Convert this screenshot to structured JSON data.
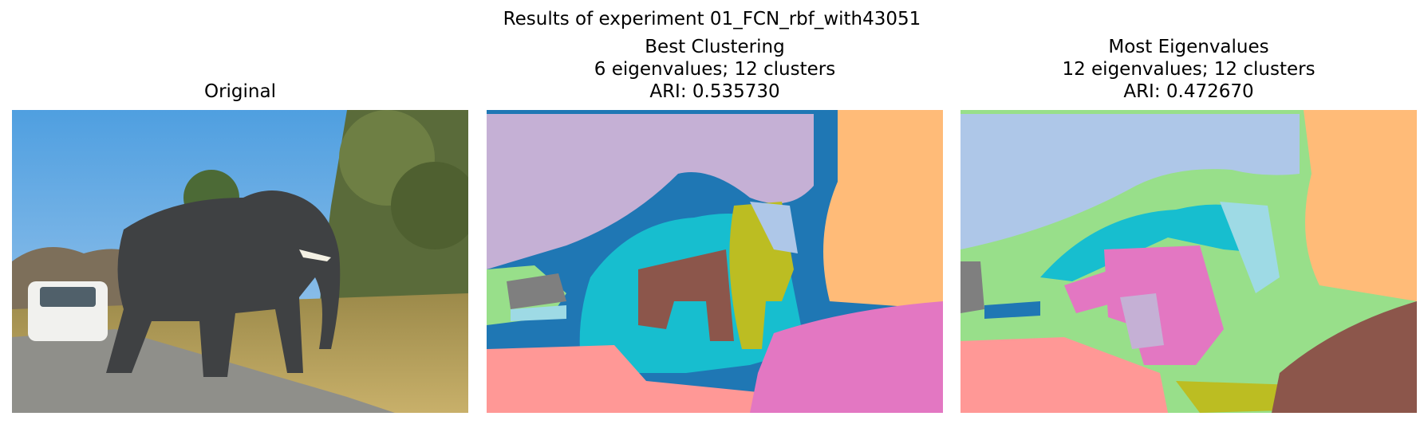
{
  "figure": {
    "suptitle": "Results of experiment 01_FCN_rbf_with43051"
  },
  "panels": [
    {
      "key": "original",
      "title_lines": [
        "Original"
      ]
    },
    {
      "key": "best",
      "title_lines": [
        "Best Clustering",
        "6 eigenvalues; 12 clusters",
        "ARI: 0.535730"
      ]
    },
    {
      "key": "most",
      "title_lines": [
        "Most Eigenvalues",
        "12 eigenvalues; 12 clusters",
        "ARI: 0.472670"
      ]
    }
  ],
  "cluster_colors": {
    "blue": "#1f77b4",
    "light_blue": "#aec7e8",
    "orange": "#ffbb78",
    "green": "#98df8a",
    "pink_red": "#ff9896",
    "lavender": "#c5b0d5",
    "brown": "#8c564b",
    "pink": "#e377c2",
    "gray": "#7f7f7f",
    "olive": "#bcbd22",
    "cyan": "#17becf",
    "pale_cyan": "#9edae5"
  }
}
